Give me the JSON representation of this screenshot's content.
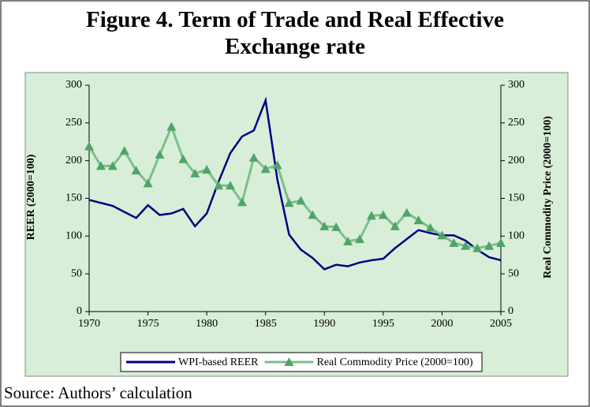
{
  "chart_data": {
    "type": "line",
    "title": "Figure 4. Term of Trade and Real Effective Exchange rate",
    "y_label": "REER  (2000=100)",
    "y2_label": "Real Commodity Price (2000=100)",
    "x": [
      1970,
      1971,
      1972,
      1973,
      1974,
      1975,
      1976,
      1977,
      1978,
      1979,
      1980,
      1981,
      1982,
      1983,
      1984,
      1985,
      1986,
      1987,
      1988,
      1989,
      1990,
      1991,
      1992,
      1993,
      1994,
      1995,
      1996,
      1997,
      1998,
      1999,
      2000,
      2001,
      2002,
      2003,
      2004,
      2005
    ],
    "series": [
      {
        "name": "WPI-based REER",
        "color": "#000080",
        "axis": "y",
        "values": [
          148,
          144,
          140,
          132,
          124,
          141,
          128,
          130,
          136,
          113,
          130,
          172,
          210,
          232,
          240,
          280,
          175,
          102,
          82,
          71,
          56,
          62,
          60,
          65,
          68,
          70,
          84,
          96,
          108,
          104,
          101,
          101,
          94,
          82,
          72,
          68
        ]
      },
      {
        "name": "Real Commodity Price (2000=100)",
        "color": "#7cbf8c",
        "axis": "y2",
        "marker": "triangle",
        "values": [
          219,
          193,
          193,
          213,
          187,
          170,
          208,
          245,
          202,
          183,
          188,
          167,
          167,
          145,
          204,
          189,
          194,
          144,
          147,
          128,
          113,
          112,
          93,
          96,
          127,
          128,
          113,
          131,
          121,
          111,
          101,
          91,
          87,
          84,
          87,
          91
        ]
      }
    ],
    "xlim": [
      1970,
      2005
    ],
    "xticks": [
      1970,
      1975,
      1980,
      1985,
      1990,
      1995,
      2000,
      2005
    ],
    "ylim": [
      0,
      300
    ],
    "yticks": [
      0,
      50,
      100,
      150,
      200,
      250,
      300
    ],
    "y2lim": [
      0,
      300
    ],
    "y2ticks": [
      0,
      50,
      100,
      150,
      200,
      250,
      300
    ],
    "grid": false,
    "legend": "bottom",
    "background": "#d8eed8"
  },
  "source": "Source: Authors’ calculation"
}
